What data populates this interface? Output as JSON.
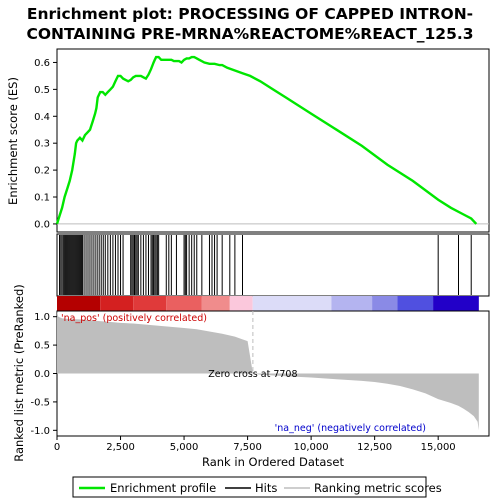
{
  "title_line1": "Enrichment plot: PROCESSING OF CAPPED INTRON-",
  "title_line2": "CONTAINING PRE-MRNA%REACTOME%REACT_125.3",
  "colors": {
    "es_line": "#00e600",
    "hits": "#000000",
    "metric_fill": "#bebebe",
    "pos_label": "#cc0000",
    "neg_label": "#0000cc",
    "zero_line": "#bebebe"
  },
  "chart_data": [
    {
      "type": "line",
      "panel": "enrichment_score",
      "ylabel": "Enrichment score (ES)",
      "xlim": [
        0,
        17000
      ],
      "ylim": [
        -0.03,
        0.65
      ],
      "yticks": [
        0.0,
        0.1,
        0.2,
        0.3,
        0.4,
        0.5,
        0.6
      ],
      "ytick_labels": [
        "0.0",
        "0.1",
        "0.2",
        "0.3",
        "0.4",
        "0.5",
        "0.6"
      ],
      "grid": false,
      "series": [
        {
          "x": [
            0,
            100,
            200,
            300,
            400,
            500,
            600,
            700,
            750,
            800,
            900,
            1000,
            1100,
            1200,
            1300,
            1400,
            1500,
            1550,
            1600,
            1700,
            1800,
            1900,
            2000,
            2100,
            2200,
            2300,
            2400,
            2500,
            2600,
            2700,
            2800,
            2900,
            3000,
            3100,
            3200,
            3300,
            3400,
            3500,
            3600,
            3700,
            3800,
            3850,
            3900,
            4000,
            4100,
            4200,
            4300,
            4400,
            4500,
            4600,
            4700,
            4800,
            4900,
            5000,
            5100,
            5200,
            5300,
            5400,
            5500,
            5600,
            5800,
            6000,
            6200,
            6400,
            6500,
            6700,
            7000,
            7300,
            7600,
            8000,
            8500,
            9000,
            10000,
            11000,
            12000,
            13000,
            14000,
            15000,
            15500,
            16000,
            16300,
            16500
          ],
          "y": [
            0.0,
            0.03,
            0.06,
            0.1,
            0.13,
            0.16,
            0.2,
            0.26,
            0.3,
            0.31,
            0.32,
            0.31,
            0.33,
            0.34,
            0.35,
            0.38,
            0.41,
            0.43,
            0.47,
            0.49,
            0.49,
            0.48,
            0.49,
            0.5,
            0.51,
            0.53,
            0.55,
            0.55,
            0.54,
            0.535,
            0.53,
            0.535,
            0.545,
            0.55,
            0.55,
            0.55,
            0.545,
            0.54,
            0.555,
            0.575,
            0.6,
            0.61,
            0.62,
            0.62,
            0.61,
            0.61,
            0.61,
            0.61,
            0.61,
            0.605,
            0.605,
            0.605,
            0.6,
            0.61,
            0.615,
            0.615,
            0.62,
            0.62,
            0.615,
            0.61,
            0.6,
            0.595,
            0.595,
            0.59,
            0.59,
            0.58,
            0.57,
            0.56,
            0.55,
            0.53,
            0.5,
            0.47,
            0.41,
            0.35,
            0.29,
            0.22,
            0.16,
            0.09,
            0.06,
            0.035,
            0.02,
            0.0
          ]
        }
      ]
    },
    {
      "type": "line",
      "panel": "hits",
      "positions": [
        100,
        150,
        200,
        250,
        300,
        340,
        380,
        420,
        460,
        500,
        540,
        580,
        620,
        660,
        700,
        740,
        780,
        820,
        860,
        900,
        940,
        980,
        1020,
        1100,
        1180,
        1260,
        1340,
        1420,
        1500,
        1580,
        1660,
        1740,
        1820,
        1900,
        2000,
        2100,
        2200,
        2300,
        2400,
        2500,
        2600,
        2900,
        2950,
        3000,
        3050,
        3100,
        3150,
        3200,
        3300,
        3400,
        3500,
        3600,
        3700,
        3750,
        3800,
        3850,
        3900,
        3950,
        4000,
        4300,
        4400,
        4500,
        4700,
        5000,
        5050,
        5100,
        5200,
        5300,
        5400,
        5500,
        5700,
        6000,
        6100,
        6200,
        6300,
        6500,
        6800,
        7000,
        7300,
        15000,
        15800,
        16300
      ]
    },
    {
      "type": "area",
      "panel": "ranked_metric",
      "xlabel": "Rank in Ordered Dataset",
      "ylabel": "Ranked list metric (PreRanked)",
      "xlim": [
        0,
        17000
      ],
      "ylim": [
        -1.1,
        1.1
      ],
      "xticks": [
        0,
        2500,
        5000,
        7500,
        10000,
        12500,
        15000
      ],
      "xtick_labels": [
        "0",
        "2,500",
        "5,000",
        "7,500",
        "10,000",
        "12,500",
        "15,000"
      ],
      "yticks": [
        1.0,
        0.5,
        0.0,
        -0.5,
        -1.0
      ],
      "ytick_labels": [
        "1.0",
        "0.5",
        "0.0",
        "-0.5",
        "-1.0"
      ],
      "x": [
        0,
        50,
        200,
        500,
        1000,
        1500,
        2000,
        2500,
        3000,
        3500,
        4000,
        4500,
        5000,
        5500,
        6000,
        6500,
        7000,
        7300,
        7500,
        7708,
        8000,
        9000,
        10000,
        11000,
        12000,
        12500,
        13000,
        13500,
        14000,
        14500,
        15000,
        15500,
        15800,
        16000,
        16200,
        16400,
        16550,
        16600
      ],
      "values": [
        1.1,
        1.0,
        0.97,
        0.96,
        0.95,
        0.93,
        0.91,
        0.89,
        0.88,
        0.86,
        0.84,
        0.82,
        0.8,
        0.78,
        0.74,
        0.7,
        0.65,
        0.6,
        0.57,
        0.0,
        -0.02,
        -0.05,
        -0.07,
        -0.1,
        -0.13,
        -0.15,
        -0.18,
        -0.22,
        -0.28,
        -0.35,
        -0.45,
        -0.52,
        -0.57,
        -0.62,
        -0.68,
        -0.75,
        -0.85,
        -1.0
      ],
      "annotations": {
        "zero_cross": "Zero cross at 7708",
        "pos_label": "'na_pos' (positively correlated)",
        "neg_label": "'na_neg' (negatively correlated)"
      },
      "zero_cross_x": 7708
    }
  ],
  "heatmap_bar": {
    "segments": [
      {
        "x0": 0,
        "x1": 1700,
        "color": "#b40000"
      },
      {
        "x0": 1700,
        "x1": 3000,
        "color": "#d42020"
      },
      {
        "x0": 3000,
        "x1": 4300,
        "color": "#e03a3a"
      },
      {
        "x0": 4300,
        "x1": 5700,
        "color": "#ea6060"
      },
      {
        "x0": 5700,
        "x1": 6800,
        "color": "#f08c8c"
      },
      {
        "x0": 6800,
        "x1": 7700,
        "color": "#fbc8dc"
      },
      {
        "x0": 7700,
        "x1": 10800,
        "color": "#dcdcf8"
      },
      {
        "x0": 10800,
        "x1": 12400,
        "color": "#b4b4f0"
      },
      {
        "x0": 12400,
        "x1": 13400,
        "color": "#8a8ae6"
      },
      {
        "x0": 13400,
        "x1": 14800,
        "color": "#5050e0"
      },
      {
        "x0": 14800,
        "x1": 16600,
        "color": "#2200c8"
      }
    ]
  },
  "legend": {
    "items": [
      {
        "label": "Enrichment profile",
        "color": "#00e600"
      },
      {
        "label": "Hits",
        "color": "#000000"
      },
      {
        "label": "Ranking metric scores",
        "color": "#bebebe"
      }
    ]
  }
}
